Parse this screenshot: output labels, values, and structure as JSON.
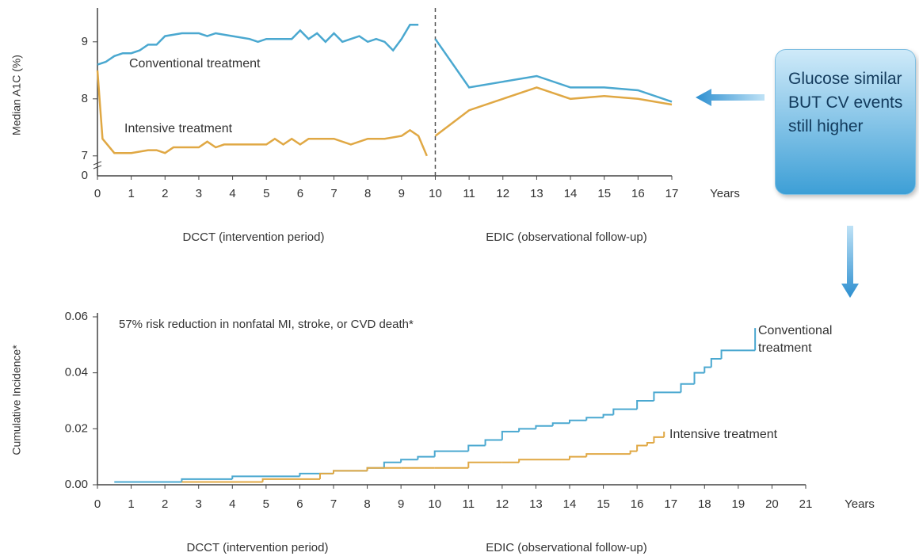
{
  "chart_data": [
    {
      "type": "line",
      "y_label": "Median A1C (%)",
      "x_unit": "Years",
      "periods": [
        "DCCT (intervention period)",
        "EDIC (observational follow-up)"
      ],
      "divider_x": 10,
      "xlim": [
        0,
        17
      ],
      "xticks": [
        0,
        1,
        2,
        3,
        4,
        5,
        6,
        7,
        8,
        9,
        10,
        11,
        12,
        13,
        14,
        15,
        16,
        17
      ],
      "ylim": [
        6.65,
        9.4
      ],
      "yticks": [
        7,
        8,
        9
      ],
      "y_break_tick": 0,
      "series": [
        {
          "name": "Conventional treatment",
          "color": "#4aa8d0",
          "x": [
            0,
            0.25,
            0.5,
            0.75,
            1,
            1.25,
            1.5,
            1.75,
            2,
            2.5,
            3,
            3.25,
            3.5,
            4,
            4.5,
            4.75,
            5,
            5.5,
            5.75,
            6,
            6.25,
            6.5,
            6.75,
            7,
            7.25,
            7.5,
            7.75,
            8,
            8.25,
            8.5,
            8.75,
            9,
            9.25,
            9.5,
            null,
            10,
            11,
            12,
            13,
            14,
            15,
            16,
            17
          ],
          "values": [
            8.6,
            8.65,
            8.75,
            8.8,
            8.8,
            8.85,
            8.95,
            8.95,
            9.1,
            9.15,
            9.15,
            9.1,
            9.15,
            9.1,
            9.05,
            9.0,
            9.05,
            9.05,
            9.05,
            9.2,
            9.05,
            9.15,
            9.0,
            9.15,
            9.0,
            9.05,
            9.1,
            9.0,
            9.05,
            9.0,
            8.85,
            9.05,
            9.3,
            9.3,
            null,
            9.05,
            8.2,
            8.3,
            8.4,
            8.2,
            8.2,
            8.15,
            7.95
          ]
        },
        {
          "name": "Intensive treatment",
          "color": "#e0a844",
          "x": [
            0,
            0.15,
            0.5,
            1,
            1.5,
            1.75,
            2,
            2.25,
            3,
            3.25,
            3.5,
            3.75,
            4,
            5,
            5.25,
            5.5,
            5.75,
            6,
            6.25,
            6.5,
            7,
            7.5,
            8,
            8.5,
            9,
            9.25,
            9.5,
            9.75,
            null,
            10,
            11,
            12,
            13,
            14,
            15,
            16,
            17
          ],
          "values": [
            8.5,
            7.3,
            7.05,
            7.05,
            7.1,
            7.1,
            7.05,
            7.15,
            7.15,
            7.25,
            7.15,
            7.2,
            7.2,
            7.2,
            7.3,
            7.2,
            7.3,
            7.2,
            7.3,
            7.3,
            7.3,
            7.2,
            7.3,
            7.3,
            7.35,
            7.45,
            7.35,
            7.0,
            null,
            7.35,
            7.8,
            8.0,
            8.2,
            8.0,
            8.05,
            8.0,
            7.9
          ]
        }
      ]
    },
    {
      "type": "step",
      "annotation": "57% risk reduction in nonfatal MI, stroke, or CVD death*",
      "y_label": "Cumulative Incidence*",
      "x_unit": "Years",
      "periods": [
        "DCCT (intervention period)",
        "EDIC (observational follow-up)"
      ],
      "xlim": [
        0,
        21
      ],
      "xticks": [
        0,
        1,
        2,
        3,
        4,
        5,
        6,
        7,
        8,
        9,
        10,
        11,
        12,
        13,
        14,
        15,
        16,
        17,
        18,
        19,
        20,
        21
      ],
      "ylim": [
        0,
        0.06
      ],
      "yticks": [
        {
          "value": 0,
          "label": "0.00"
        },
        {
          "value": 0.02,
          "label": "0.02"
        },
        {
          "value": 0.04,
          "label": "0.04"
        },
        {
          "value": 0.06,
          "label": "0.06"
        }
      ],
      "series": [
        {
          "name": "Conventional treatment",
          "color": "#4aa8d0",
          "x": [
            0.5,
            2.5,
            4,
            6,
            7,
            8,
            8.5,
            9,
            9.5,
            10,
            11,
            11.5,
            12,
            12.5,
            13,
            13.5,
            14,
            14.5,
            15,
            15.3,
            16,
            16.5,
            17.3,
            17.7,
            18,
            18.2,
            18.5,
            19.5
          ],
          "values": [
            0.001,
            0.002,
            0.003,
            0.004,
            0.005,
            0.006,
            0.008,
            0.009,
            0.01,
            0.012,
            0.014,
            0.016,
            0.019,
            0.02,
            0.021,
            0.022,
            0.023,
            0.024,
            0.025,
            0.027,
            0.03,
            0.033,
            0.036,
            0.04,
            0.042,
            0.045,
            0.048,
            0.056
          ]
        },
        {
          "name": "Intensive treatment",
          "color": "#e0a844",
          "x": [
            2.5,
            4.9,
            6.6,
            7,
            8,
            9,
            10,
            11,
            12,
            12.5,
            14,
            14.5,
            15.8,
            16,
            16.3,
            16.5,
            16.8
          ],
          "values": [
            0.001,
            0.002,
            0.004,
            0.005,
            0.006,
            0.006,
            0.006,
            0.008,
            0.008,
            0.009,
            0.01,
            0.011,
            0.012,
            0.014,
            0.015,
            0.017,
            0.019
          ]
        }
      ]
    }
  ],
  "callout": "Glucose similar BUT CV events still higher"
}
